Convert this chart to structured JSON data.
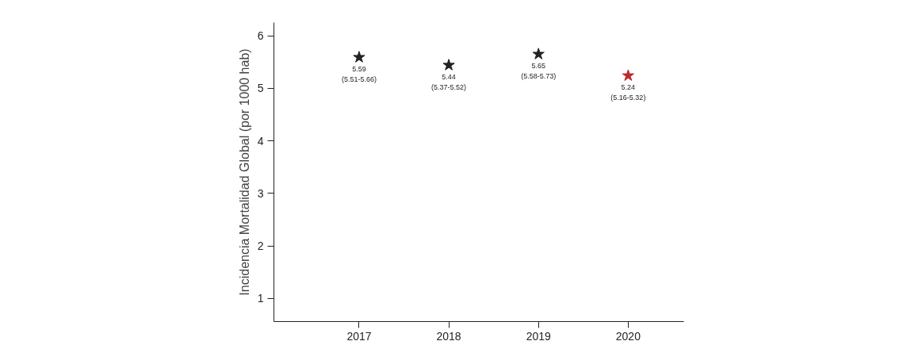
{
  "chart_data": {
    "type": "scatter",
    "ylabel": "Incidencia Mortalidad Global (por 1000 hab)",
    "x": [
      2017,
      2018,
      2019,
      2020
    ],
    "series": [
      {
        "values": [
          5.59,
          5.44,
          5.65,
          5.24
        ],
        "colors": [
          "#222222",
          "#222222",
          "#222222",
          "#c0272d"
        ],
        "value_labels": [
          "5.59\n(5.51-5.66)",
          "5.44\n(5.37-5.52)",
          "5.65\n(5.58-5.73)",
          "5.24\n(5.16-5.32)"
        ]
      }
    ],
    "xlim": [
      2016.05,
      2020.62
    ],
    "xticks": [
      2017,
      2018,
      2019,
      2020
    ],
    "ylim": [
      0.56,
      6.25
    ],
    "yticks": [
      1,
      2,
      3,
      4,
      5,
      6
    ],
    "marker": "star"
  }
}
